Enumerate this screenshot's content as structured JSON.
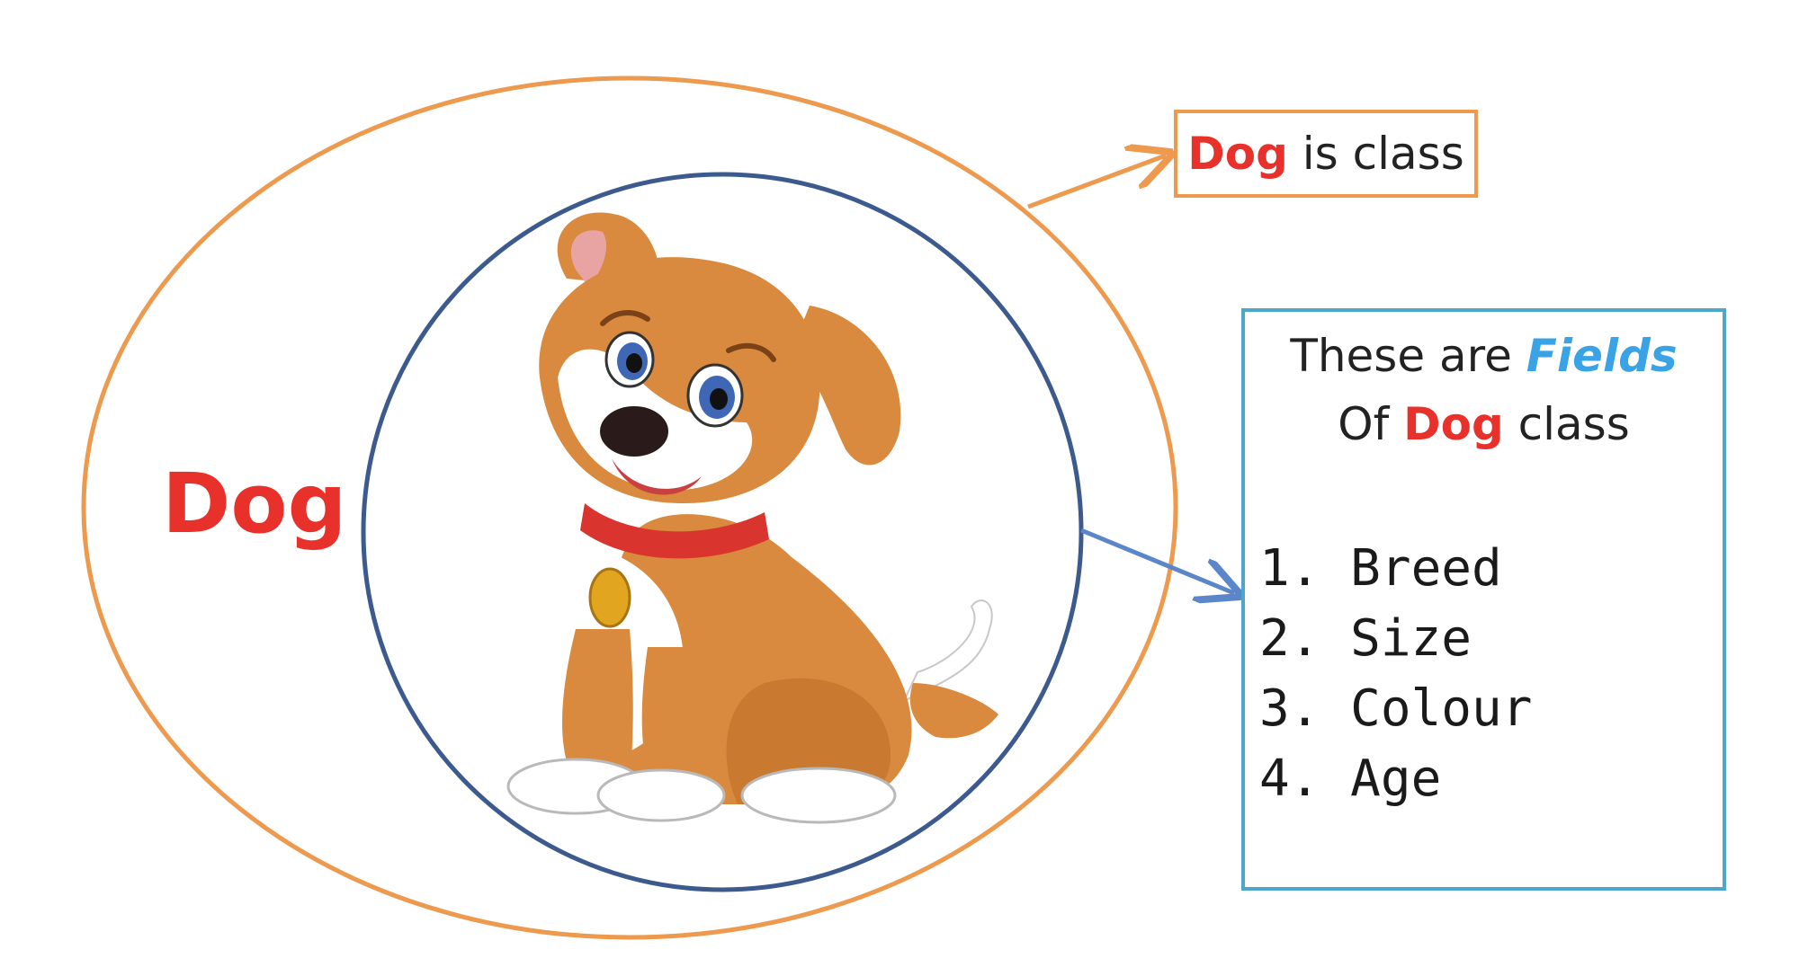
{
  "diagram": {
    "outer_label": "Dog",
    "class_box": {
      "highlight": "Dog",
      "text": " is class"
    },
    "fields_box": {
      "line1_prefix": "These are ",
      "line1_highlight": "Fields",
      "line2_prefix": "Of ",
      "line2_highlight": "Dog",
      "line2_suffix": " class",
      "items": [
        "1. Breed",
        "2. Size",
        "3. Colour",
        "4. Age"
      ]
    },
    "illustration": "puppy-illustration",
    "colors": {
      "outer_ellipse": "#ed9a4f",
      "inner_circle": "#3c5a8e",
      "class_arrow": "#ed9a4f",
      "fields_arrow": "#5b86c9",
      "fields_box_border": "#4ea6c9",
      "highlight_red": "#e8312a",
      "highlight_blue": "#3aa3e6"
    }
  }
}
